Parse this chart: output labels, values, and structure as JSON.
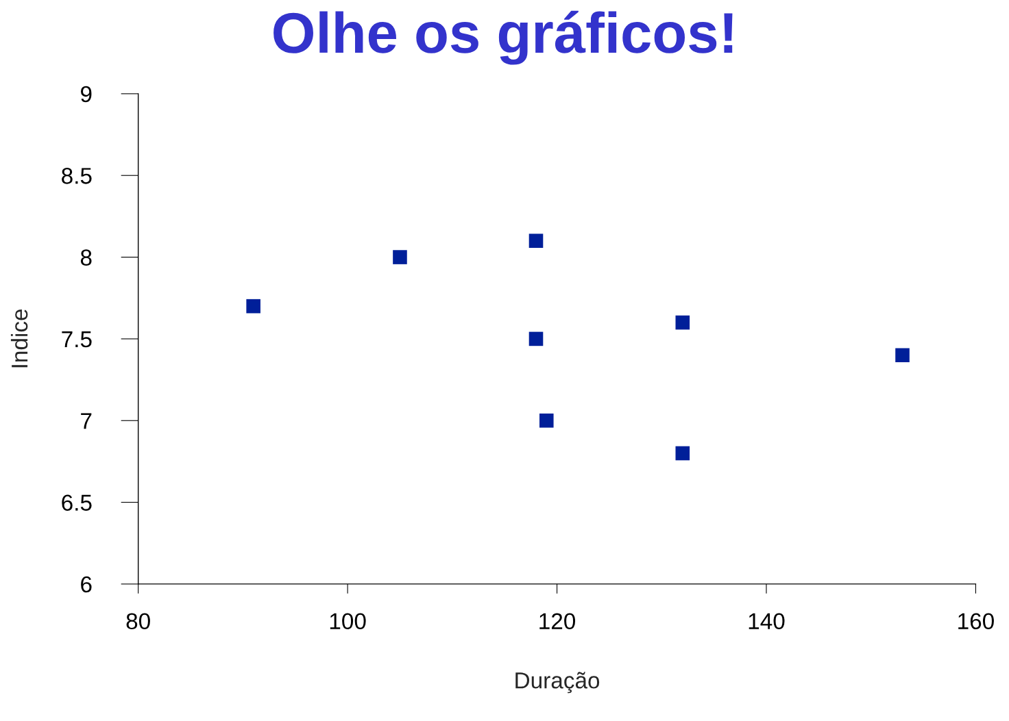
{
  "chart_data": {
    "type": "scatter",
    "title": "Olhe os gráficos!",
    "xlabel": "Duração",
    "ylabel": "Indice",
    "x": [
      91,
      105,
      118,
      118,
      119,
      132,
      132,
      153
    ],
    "series": [
      {
        "color": "#001f99",
        "values": [
          7.7,
          8.0,
          8.1,
          7.5,
          7.0,
          7.6,
          6.8,
          7.4
        ]
      }
    ],
    "xlim": [
      80,
      160
    ],
    "xticks": [
      80,
      100,
      120,
      140,
      160
    ],
    "ylim": [
      6,
      9
    ],
    "yticks": [
      6,
      6.5,
      7,
      7.5,
      8,
      8.5,
      9
    ],
    "marker": "square",
    "grid": false
  }
}
